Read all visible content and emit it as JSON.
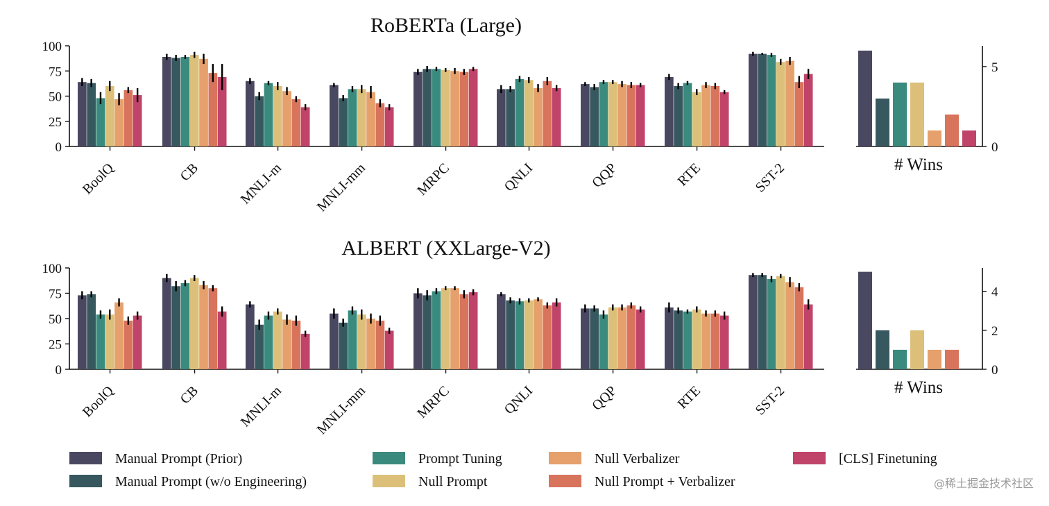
{
  "colors": [
    "#4a4861",
    "#37585f",
    "#3a8a7e",
    "#dcc07a",
    "#e5a06b",
    "#d8745c",
    "#c0436a"
  ],
  "legend": [
    "Manual Prompt (Prior)",
    "Manual Prompt (w/o Engineering)",
    "Prompt Tuning",
    "Null Prompt",
    "Null Verbalizer",
    "Null Prompt + Verbalizer",
    "[CLS] Finetuning"
  ],
  "watermark": "@稀土掘金技术社区",
  "chart_data": [
    {
      "type": "bar",
      "title": "RoBERTa (Large)",
      "categories": [
        "BoolQ",
        "CB",
        "MNLI-m",
        "MNLI-mm",
        "MRPC",
        "QNLI",
        "QQP",
        "RTE",
        "SST-2"
      ],
      "ylim": [
        0,
        100
      ],
      "yticks": [
        0,
        25,
        50,
        75,
        100
      ],
      "values": [
        [
          64,
          63,
          48,
          60,
          47,
          56,
          51
        ],
        [
          89,
          88,
          89,
          91,
          87,
          73,
          69
        ],
        [
          65,
          50,
          63,
          60,
          55,
          47,
          39
        ],
        [
          61,
          48,
          57,
          57,
          54,
          43,
          39
        ],
        [
          74,
          77,
          77,
          76,
          75,
          74,
          77
        ],
        [
          57,
          57,
          67,
          66,
          58,
          65,
          58
        ],
        [
          62,
          59,
          64,
          64,
          62,
          61,
          61
        ],
        [
          69,
          60,
          63,
          54,
          61,
          60,
          54
        ],
        [
          92,
          92,
          91,
          84,
          85,
          64,
          72
        ]
      ],
      "errors": [
        [
          4,
          4,
          6,
          5,
          6,
          3,
          7
        ],
        [
          3,
          3,
          2,
          3,
          5,
          9,
          13
        ],
        [
          3,
          4,
          2,
          4,
          4,
          3,
          3
        ],
        [
          2,
          3,
          3,
          4,
          6,
          4,
          3
        ],
        [
          3,
          3,
          2,
          2,
          3,
          3,
          2
        ],
        [
          4,
          3,
          3,
          3,
          4,
          4,
          3
        ],
        [
          2,
          3,
          2,
          2,
          3,
          3,
          2
        ],
        [
          3,
          3,
          2,
          3,
          3,
          3,
          2
        ],
        [
          2,
          1,
          2,
          3,
          4,
          6,
          5
        ]
      ],
      "wins": {
        "label": "# Wins",
        "values": [
          6,
          3,
          4,
          4,
          1,
          2,
          1
        ],
        "ylim": [
          0,
          6.3
        ],
        "yticks": [
          0,
          5
        ]
      }
    },
    {
      "type": "bar",
      "title": "ALBERT (XXLarge-V2)",
      "categories": [
        "BoolQ",
        "CB",
        "MNLI-m",
        "MNLI-mm",
        "MRPC",
        "QNLI",
        "QQP",
        "RTE",
        "SST-2"
      ],
      "ylim": [
        0,
        100
      ],
      "yticks": [
        0,
        25,
        50,
        75,
        100
      ],
      "values": [
        [
          73,
          74,
          54,
          54,
          66,
          48,
          53
        ],
        [
          90,
          82,
          85,
          90,
          83,
          80,
          57
        ],
        [
          64,
          44,
          53,
          57,
          49,
          48,
          35
        ],
        [
          55,
          46,
          58,
          54,
          50,
          48,
          38
        ],
        [
          75,
          73,
          77,
          80,
          80,
          74,
          76
        ],
        [
          74,
          68,
          67,
          68,
          69,
          63,
          66
        ],
        [
          60,
          60,
          54,
          61,
          61,
          63,
          59
        ],
        [
          61,
          58,
          57,
          59,
          55,
          55,
          53
        ],
        [
          93,
          93,
          89,
          92,
          86,
          81,
          64
        ]
      ],
      "errors": [
        [
          4,
          3,
          4,
          5,
          4,
          4,
          4
        ],
        [
          4,
          5,
          3,
          3,
          4,
          3,
          5
        ],
        [
          3,
          5,
          4,
          3,
          5,
          5,
          3
        ],
        [
          5,
          4,
          4,
          5,
          5,
          5,
          3
        ],
        [
          5,
          5,
          3,
          2,
          2,
          4,
          3
        ],
        [
          2,
          3,
          3,
          2,
          2,
          3,
          4
        ],
        [
          4,
          3,
          4,
          3,
          3,
          3,
          3
        ],
        [
          5,
          3,
          2,
          3,
          3,
          3,
          4
        ],
        [
          2,
          2,
          3,
          2,
          5,
          4,
          5
        ]
      ],
      "wins": {
        "label": "# Wins",
        "values": [
          5,
          2,
          1,
          2,
          1,
          1,
          0
        ],
        "ylim": [
          0,
          5.2
        ],
        "yticks": [
          0,
          2,
          4
        ]
      }
    }
  ]
}
